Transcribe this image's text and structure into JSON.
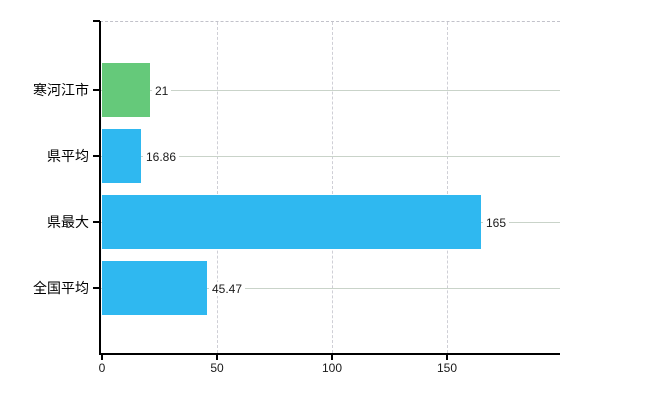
{
  "page": {
    "background": "#ffffff",
    "title": ""
  },
  "chart_data": {
    "type": "bar",
    "orientation": "horizontal",
    "title": "",
    "xlabel": "",
    "ylabel": "",
    "categories": [
      "寒河江市",
      "県平均",
      "県最大",
      "全国平均"
    ],
    "values": [
      21,
      16.86,
      165,
      45.47
    ],
    "value_labels": [
      "21",
      "16.86",
      "165",
      "45.47"
    ],
    "bar_colors": [
      "#65c97a",
      "#2fb8f0",
      "#2fb8f0",
      "#2fb8f0"
    ],
    "x_tick_labels": [
      "0",
      "50",
      "100",
      "150"
    ],
    "x_tick_values": [
      0,
      50,
      100,
      150
    ],
    "xlim": [
      0,
      199
    ],
    "grid": true,
    "legend_position": "none",
    "colors": {
      "highlight_bar": "#65c97a",
      "default_bar": "#2fb8f0",
      "axis": "#000000",
      "horizontal_grid": "#c9d3c9",
      "vertical_grid": "#cfcfd6",
      "top_border_dashed": "#c2c2ca",
      "text": "#000000"
    }
  }
}
